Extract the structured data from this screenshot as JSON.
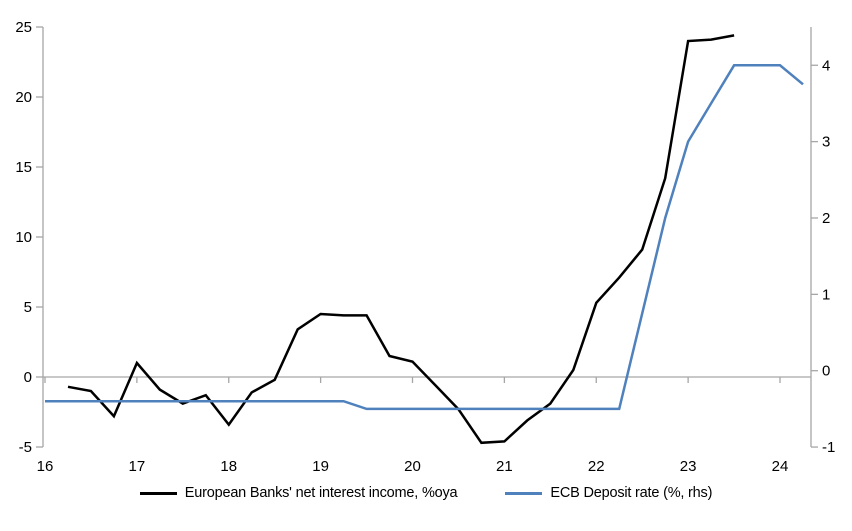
{
  "chart_data": {
    "type": "line",
    "title": "",
    "x_axis": {
      "tick_labels": [
        "16",
        "17",
        "18",
        "19",
        "20",
        "21",
        "22",
        "23",
        "24"
      ],
      "tick_values": [
        2016,
        2017,
        2018,
        2019,
        2020,
        2021,
        2022,
        2023,
        2024
      ],
      "range": [
        2016,
        2024.35
      ]
    },
    "left_axis": {
      "tick_labels": [
        "-5",
        "0",
        "5",
        "10",
        "15",
        "20",
        "25"
      ],
      "tick_values": [
        -5,
        0,
        5,
        10,
        15,
        20,
        25
      ],
      "range": [
        -5,
        25
      ]
    },
    "right_axis": {
      "tick_labels": [
        "-1",
        "0",
        "1",
        "2",
        "3",
        "4"
      ],
      "tick_values": [
        -1,
        0,
        1,
        2,
        3,
        4
      ],
      "range": [
        -1,
        4.5
      ]
    },
    "grid": "zero-line-only",
    "axis_color": "#a6a6a6",
    "legend_position": "bottom",
    "series": [
      {
        "name": "European Banks' net interest income, %oya",
        "color": "#000000",
        "axis": "left",
        "x": [
          2016.25,
          2016.5,
          2016.75,
          2017.0,
          2017.25,
          2017.5,
          2017.75,
          2018.0,
          2018.25,
          2018.5,
          2018.75,
          2019.0,
          2019.25,
          2019.5,
          2019.75,
          2020.0,
          2020.25,
          2020.5,
          2020.75,
          2021.0,
          2021.25,
          2021.5,
          2021.75,
          2022.0,
          2022.25,
          2022.5,
          2022.75,
          2023.0,
          2023.25,
          2023.5
        ],
        "values": [
          -0.7,
          -1.0,
          -2.8,
          1.0,
          -0.9,
          -1.9,
          -1.3,
          -3.4,
          -1.1,
          -0.2,
          3.4,
          4.5,
          4.4,
          4.4,
          1.5,
          1.1,
          -0.6,
          -2.3,
          -4.7,
          -4.6,
          -3.1,
          -1.9,
          0.5,
          5.3,
          7.1,
          9.1,
          14.2,
          24.0,
          24.1,
          24.4
        ]
      },
      {
        "name": "ECB Deposit rate (%, rhs)",
        "color": "#4f81bd",
        "axis": "right",
        "x": [
          2016.0,
          2016.25,
          2016.5,
          2016.75,
          2017.0,
          2017.25,
          2017.5,
          2017.75,
          2018.0,
          2018.25,
          2018.5,
          2018.75,
          2019.0,
          2019.25,
          2019.5,
          2019.75,
          2020.0,
          2020.25,
          2020.5,
          2020.75,
          2021.0,
          2021.25,
          2021.5,
          2021.75,
          2022.0,
          2022.25,
          2022.5,
          2022.75,
          2023.0,
          2023.25,
          2023.5,
          2023.75,
          2024.0,
          2024.25
        ],
        "values": [
          -0.4,
          -0.4,
          -0.4,
          -0.4,
          -0.4,
          -0.4,
          -0.4,
          -0.4,
          -0.4,
          -0.4,
          -0.4,
          -0.4,
          -0.4,
          -0.4,
          -0.5,
          -0.5,
          -0.5,
          -0.5,
          -0.5,
          -0.5,
          -0.5,
          -0.5,
          -0.5,
          -0.5,
          -0.5,
          -0.5,
          0.75,
          2.0,
          3.0,
          3.5,
          4.0,
          4.0,
          4.0,
          3.75
        ]
      }
    ]
  }
}
